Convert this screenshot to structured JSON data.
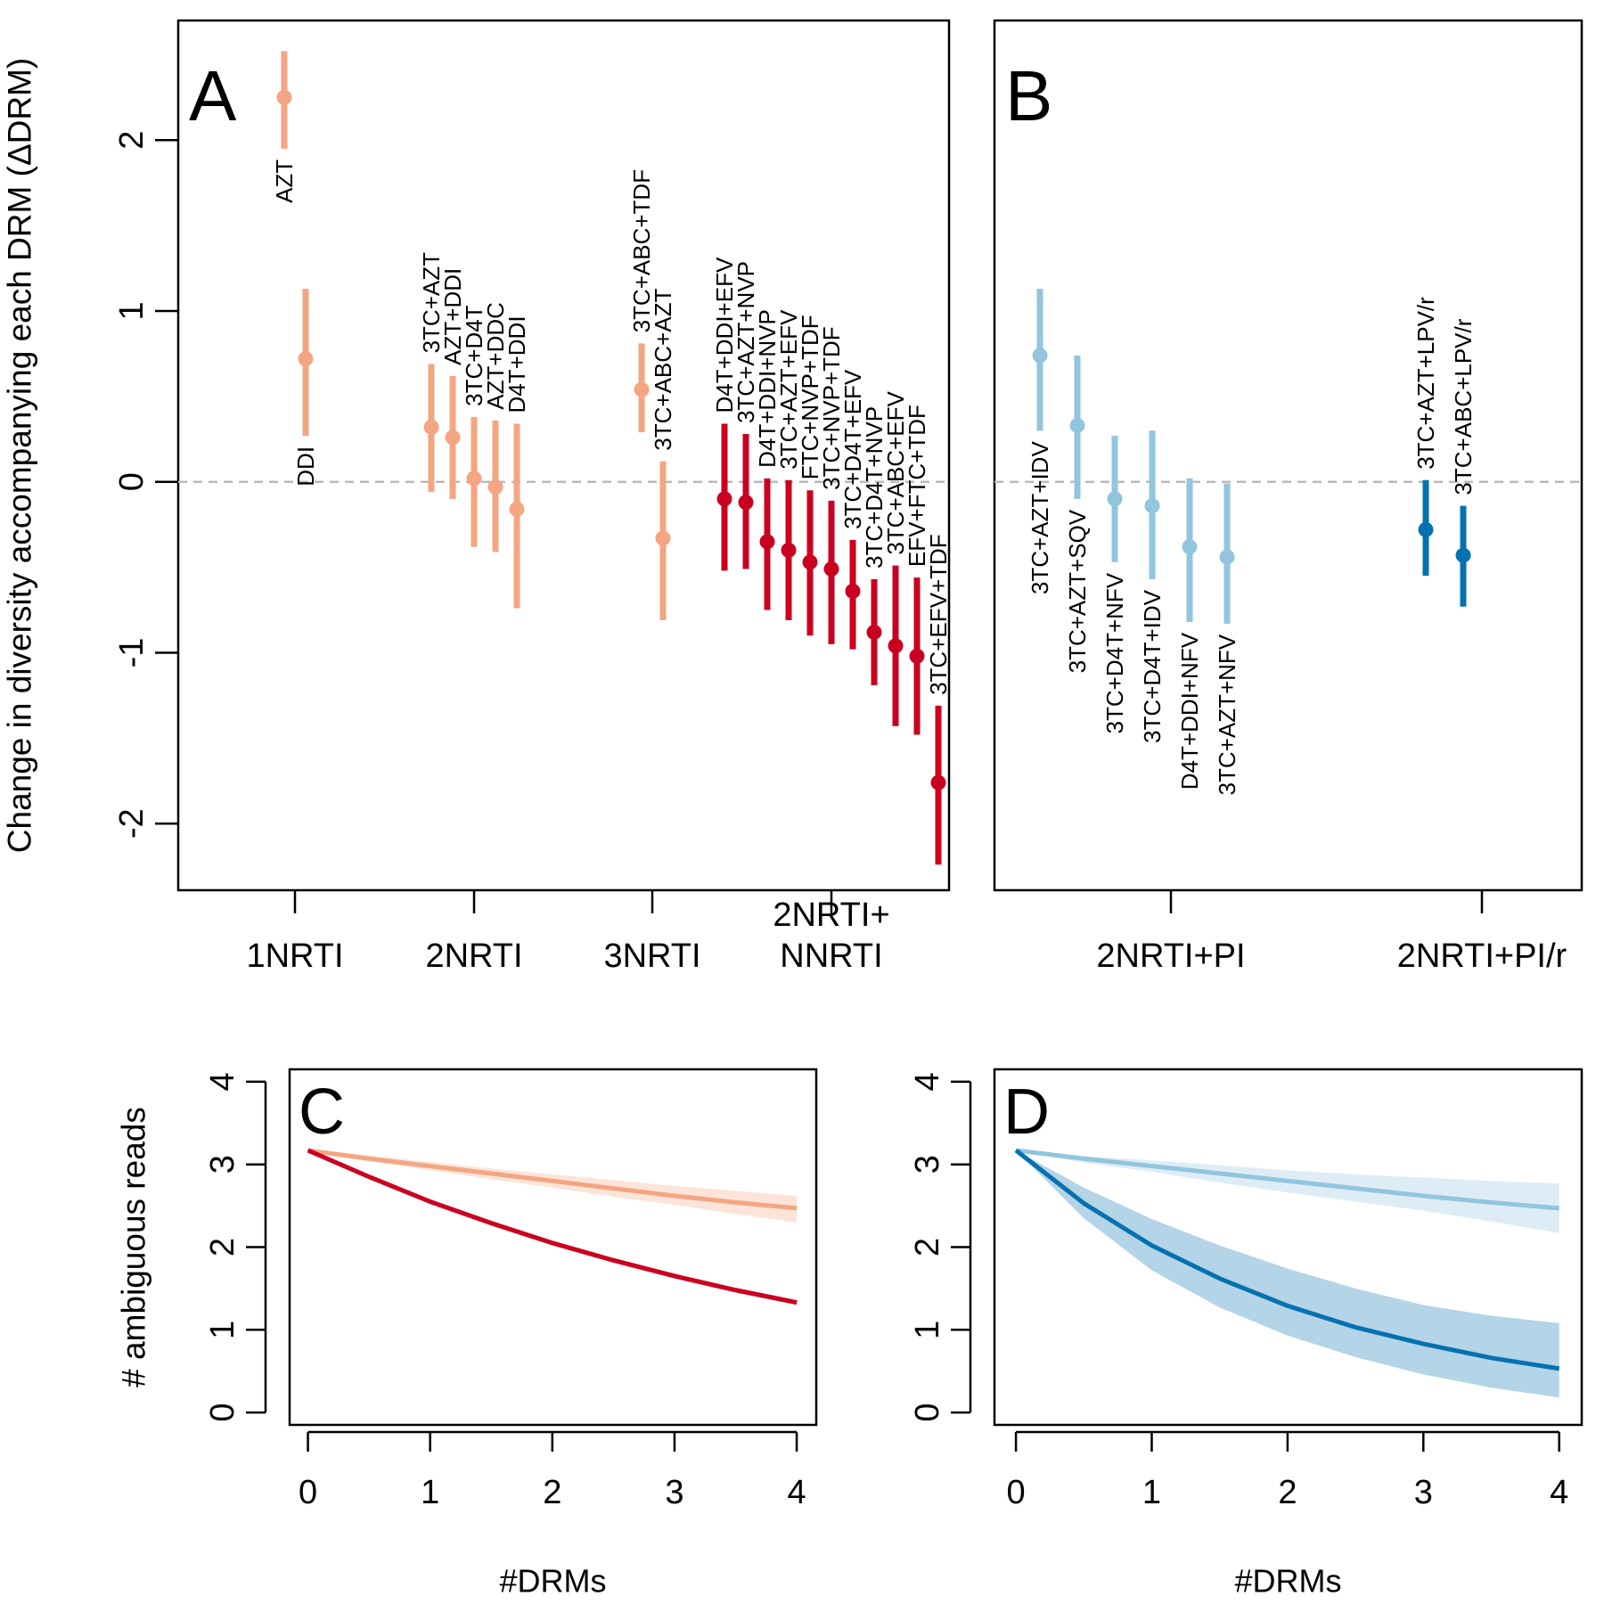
{
  "chart_data": [
    {
      "type": "pointrange",
      "panel": "A",
      "ylabel": "Change in diversity accompanying each DRM (ΔDRM)",
      "ylim": [
        -2.39,
        2.7
      ],
      "yticks": [
        -2,
        -1,
        0,
        1,
        2
      ],
      "reference_line": 0,
      "groups": [
        {
          "name": "1NRTI",
          "color": "#f4a582",
          "points": [
            {
              "label": "AZT",
              "value": 2.25,
              "lower": 1.95,
              "upper": 2.52
            },
            {
              "label": "DDI",
              "value": 0.72,
              "lower": 0.27,
              "upper": 1.13
            }
          ]
        },
        {
          "name": "2NRTI",
          "color": "#f4a582",
          "points": [
            {
              "label": "3TC+AZT",
              "value": 0.32,
              "lower": -0.06,
              "upper": 0.69
            },
            {
              "label": "AZT+DDI",
              "value": 0.26,
              "lower": -0.1,
              "upper": 0.62
            },
            {
              "label": "3TC+D4T",
              "value": 0.02,
              "lower": -0.38,
              "upper": 0.38
            },
            {
              "label": "AZT+DDC",
              "value": -0.03,
              "lower": -0.41,
              "upper": 0.36
            },
            {
              "label": "D4T+DDI",
              "value": -0.16,
              "lower": -0.74,
              "upper": 0.34
            }
          ]
        },
        {
          "name": "3NRTI",
          "color": "#f4a582",
          "points": [
            {
              "label": "3TC+ABC+TDF",
              "value": 0.54,
              "lower": 0.29,
              "upper": 0.81
            },
            {
              "label": "3TC+ABC+AZT",
              "value": -0.33,
              "lower": -0.81,
              "upper": 0.12
            }
          ]
        },
        {
          "name": "2NRTI+\nNNRTI",
          "color": "#ca0020",
          "points": [
            {
              "label": "D4T+DDI+EFV",
              "value": -0.1,
              "lower": -0.52,
              "upper": 0.34
            },
            {
              "label": "3TC+AZT+NVP",
              "value": -0.12,
              "lower": -0.51,
              "upper": 0.28
            },
            {
              "label": "D4T+DDI+NVP",
              "value": -0.35,
              "lower": -0.75,
              "upper": 0.02
            },
            {
              "label": "3TC+AZT+EFV",
              "value": -0.4,
              "lower": -0.81,
              "upper": 0.01
            },
            {
              "label": "FTC+NVP+TDF",
              "value": -0.47,
              "lower": -0.9,
              "upper": -0.05
            },
            {
              "label": "3TC+NVP+TDF",
              "value": -0.51,
              "lower": -0.95,
              "upper": -0.11
            },
            {
              "label": "3TC+D4T+EFV",
              "value": -0.64,
              "lower": -0.98,
              "upper": -0.34
            },
            {
              "label": "3TC+D4T+NVP",
              "value": -0.88,
              "lower": -1.19,
              "upper": -0.57
            },
            {
              "label": "3TC+ABC+EFV",
              "value": -0.96,
              "lower": -1.43,
              "upper": -0.49
            },
            {
              "label": "EFV+FTC+TDF",
              "value": -1.02,
              "lower": -1.48,
              "upper": -0.56
            },
            {
              "label": "3TC+EFV+TDF",
              "value": -1.76,
              "lower": -2.24,
              "upper": -1.31
            }
          ]
        }
      ]
    },
    {
      "type": "pointrange",
      "panel": "B",
      "ylim": [
        -2.39,
        2.7
      ],
      "reference_line": 0,
      "groups": [
        {
          "name": "2NRTI+PI",
          "color": "#92c5de",
          "points": [
            {
              "label": "3TC+AZT+IDV",
              "value": 0.74,
              "lower": 0.3,
              "upper": 1.13
            },
            {
              "label": "3TC+AZT+SQV",
              "value": 0.33,
              "lower": -0.1,
              "upper": 0.74
            },
            {
              "label": "3TC+D4T+NFV",
              "value": -0.1,
              "lower": -0.47,
              "upper": 0.27
            },
            {
              "label": "3TC+D4T+IDV",
              "value": -0.14,
              "lower": -0.57,
              "upper": 0.3
            },
            {
              "label": "D4T+DDI+NFV",
              "value": -0.38,
              "lower": -0.82,
              "upper": 0.02
            },
            {
              "label": "3TC+AZT+NFV",
              "value": -0.44,
              "lower": -0.83,
              "upper": -0.01
            }
          ]
        },
        {
          "name": "2NRTI+PI/r",
          "color": "#0571b0",
          "points": [
            {
              "label": "3TC+AZT+LPV/r",
              "value": -0.28,
              "lower": -0.55,
              "upper": 0.01
            },
            {
              "label": "3TC+ABC+LPV/r",
              "value": -0.43,
              "lower": -0.73,
              "upper": -0.14
            }
          ]
        }
      ]
    },
    {
      "type": "line",
      "panel": "C",
      "xlabel": "#DRMs",
      "ylabel": "# ambiguous reads",
      "x": [
        0,
        0.5,
        1,
        1.5,
        2,
        2.5,
        3,
        3.5,
        4
      ],
      "xlim": [
        -0.15,
        4.16
      ],
      "ylim": [
        -0.15,
        4.15
      ],
      "xticks": [
        0,
        1,
        2,
        3,
        4
      ],
      "yticks": [
        0,
        1,
        2,
        3,
        4
      ],
      "series": [
        {
          "color": "#f4a582",
          "values": [
            3.17,
            3.07,
            2.98,
            2.89,
            2.8,
            2.71,
            2.62,
            2.54,
            2.47
          ],
          "lower": [
            3.15,
            3.04,
            2.93,
            2.82,
            2.72,
            2.61,
            2.51,
            2.4,
            2.3
          ],
          "upper": [
            3.19,
            3.11,
            3.03,
            2.95,
            2.88,
            2.81,
            2.74,
            2.68,
            2.62
          ]
        },
        {
          "color": "#ca0020",
          "values": [
            3.17,
            2.85,
            2.55,
            2.29,
            2.05,
            1.84,
            1.65,
            1.48,
            1.33
          ],
          "lower": [
            3.15,
            2.82,
            2.52,
            2.26,
            2.02,
            1.81,
            1.62,
            1.45,
            1.3
          ],
          "upper": [
            3.19,
            2.88,
            2.58,
            2.32,
            2.08,
            1.87,
            1.68,
            1.51,
            1.36
          ]
        }
      ]
    },
    {
      "type": "line",
      "panel": "D",
      "xlabel": "#DRMs",
      "x": [
        0,
        0.5,
        1,
        1.5,
        2,
        2.5,
        3,
        3.5,
        4
      ],
      "xlim": [
        -0.158,
        4.166
      ],
      "ylim": [
        -0.15,
        4.15
      ],
      "xticks": [
        0,
        1,
        2,
        3,
        4
      ],
      "yticks": [
        0,
        1,
        2,
        3,
        4
      ],
      "series": [
        {
          "color": "#92c5de",
          "values": [
            3.17,
            3.07,
            2.98,
            2.89,
            2.8,
            2.71,
            2.62,
            2.54,
            2.47
          ],
          "lower": [
            3.17,
            3.02,
            2.91,
            2.78,
            2.66,
            2.55,
            2.44,
            2.31,
            2.17
          ],
          "upper": [
            3.17,
            3.1,
            3.05,
            2.99,
            2.93,
            2.88,
            2.84,
            2.8,
            2.77
          ]
        },
        {
          "color": "#0571b0",
          "values": [
            3.17,
            2.53,
            2.02,
            1.62,
            1.29,
            1.03,
            0.83,
            0.66,
            0.53
          ],
          "lower": [
            3.17,
            2.35,
            1.72,
            1.27,
            0.93,
            0.67,
            0.46,
            0.3,
            0.18
          ],
          "upper": [
            3.17,
            2.72,
            2.34,
            2.02,
            1.74,
            1.5,
            1.3,
            1.17,
            1.08
          ]
        }
      ]
    }
  ]
}
